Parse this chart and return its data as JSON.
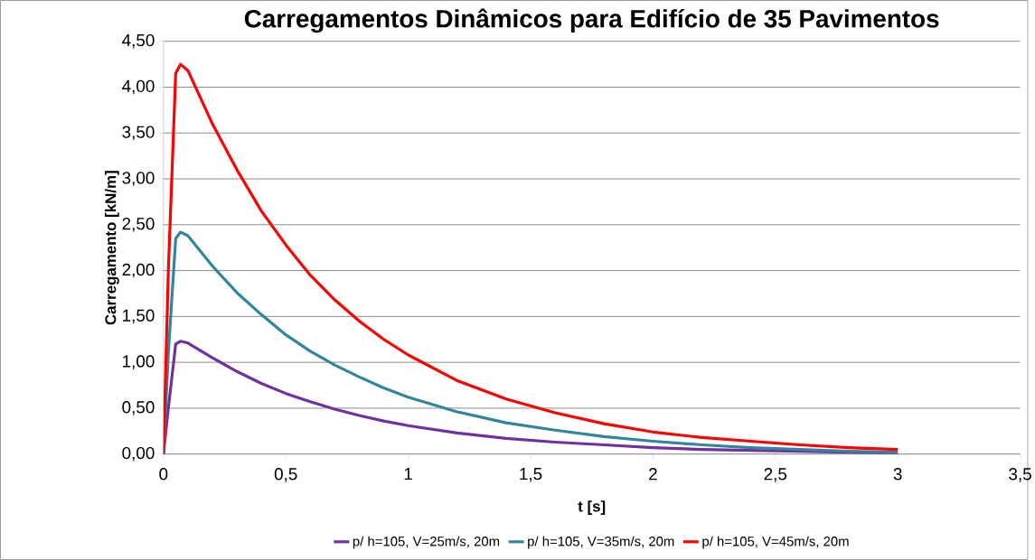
{
  "chart_data": {
    "type": "line",
    "title": "Carregamentos Dinâmicos para Edifício de 35 Pavimentos",
    "xlabel": "t [s]",
    "ylabel": "Carregamento [kN/m]",
    "xlim": [
      0,
      3.5
    ],
    "ylim": [
      0,
      4.5
    ],
    "xticks": [
      0,
      {
        "value": 0.5,
        "label": "0,5"
      },
      1,
      {
        "value": 1.5,
        "label": "1,5"
      },
      2,
      {
        "value": 2.5,
        "label": "2,5"
      },
      3,
      {
        "value": 3.5,
        "label": "3,5"
      }
    ],
    "yticks": [
      {
        "value": 0,
        "label": "0,00"
      },
      {
        "value": 0.5,
        "label": "0,50"
      },
      {
        "value": 1,
        "label": "1,00"
      },
      {
        "value": 1.5,
        "label": "1,50"
      },
      {
        "value": 2,
        "label": "2,00"
      },
      {
        "value": 2.5,
        "label": "2,50"
      },
      {
        "value": 3,
        "label": "3,00"
      },
      {
        "value": 3.5,
        "label": "3,50"
      },
      {
        "value": 4,
        "label": "4,00"
      },
      {
        "value": 4.5,
        "label": "4,50"
      }
    ],
    "x": [
      0,
      0.02,
      0.05,
      0.07,
      0.1,
      0.2,
      0.3,
      0.4,
      0.5,
      0.6,
      0.7,
      0.8,
      0.9,
      1.0,
      1.2,
      1.4,
      1.6,
      1.8,
      2.0,
      2.2,
      2.4,
      2.6,
      2.8,
      3.0
    ],
    "series": [
      {
        "name": "p/ h=105, V=25m/s, 20m",
        "color": "#7030a0",
        "values": [
          0,
          0.5,
          1.2,
          1.23,
          1.21,
          1.05,
          0.9,
          0.77,
          0.66,
          0.57,
          0.49,
          0.42,
          0.36,
          0.31,
          0.23,
          0.17,
          0.13,
          0.1,
          0.07,
          0.05,
          0.04,
          0.03,
          0.02,
          0.01
        ]
      },
      {
        "name": "p/ h=105, V=35m/s, 20m",
        "color": "#31859c",
        "values": [
          0,
          1.1,
          2.35,
          2.42,
          2.38,
          2.05,
          1.76,
          1.52,
          1.3,
          1.12,
          0.97,
          0.84,
          0.72,
          0.62,
          0.46,
          0.34,
          0.26,
          0.19,
          0.14,
          0.1,
          0.07,
          0.05,
          0.03,
          0.02
        ]
      },
      {
        "name": "p/ h=105, V=45m/s, 20m",
        "color": "#ff0000",
        "values": [
          0,
          2.0,
          4.15,
          4.25,
          4.18,
          3.6,
          3.1,
          2.65,
          2.28,
          1.95,
          1.68,
          1.45,
          1.25,
          1.08,
          0.8,
          0.6,
          0.45,
          0.33,
          0.24,
          0.18,
          0.14,
          0.1,
          0.07,
          0.05
        ]
      }
    ],
    "grid": "y",
    "legend": "bottom",
    "marker": "none",
    "line_style": "solid"
  }
}
